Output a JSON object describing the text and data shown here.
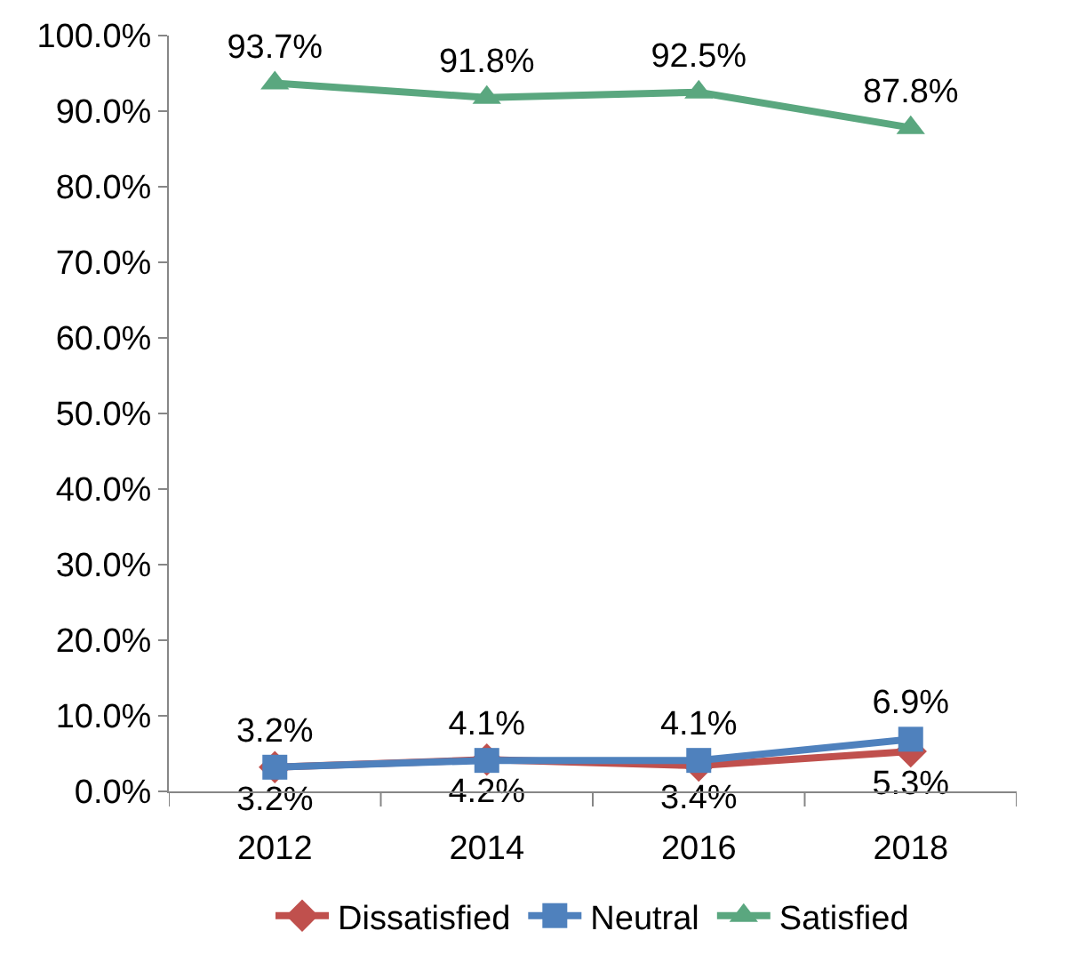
{
  "chart_data": {
    "type": "line",
    "categories": [
      "2012",
      "2014",
      "2016",
      "2018"
    ],
    "series": [
      {
        "name": "Dissatisfied",
        "color": "#c0504d",
        "marker": "diamond",
        "values": [
          3.2,
          4.2,
          3.4,
          5.3
        ],
        "value_labels": [
          "3.2%",
          "4.2%",
          "3.4%",
          "5.3%"
        ]
      },
      {
        "name": "Neutral",
        "color": "#4f81bd",
        "marker": "square",
        "values": [
          3.2,
          4.1,
          4.1,
          6.9
        ],
        "value_labels": [
          "3.2%",
          "4.1%",
          "4.1%",
          "6.9%"
        ]
      },
      {
        "name": "Satisfied",
        "color": "#5aa77f",
        "marker": "triangle",
        "values": [
          93.7,
          91.8,
          92.5,
          87.8
        ],
        "value_labels": [
          "93.7%",
          "91.8%",
          "92.5%",
          "87.8%"
        ]
      }
    ],
    "ylim": [
      0,
      100
    ],
    "yticks": [
      {
        "value": 0,
        "label": "0.0%"
      },
      {
        "value": 10,
        "label": "10.0%"
      },
      {
        "value": 20,
        "label": "20.0%"
      },
      {
        "value": 30,
        "label": "30.0%"
      },
      {
        "value": 40,
        "label": "40.0%"
      },
      {
        "value": 50,
        "label": "50.0%"
      },
      {
        "value": 60,
        "label": "60.0%"
      },
      {
        "value": 70,
        "label": "70.0%"
      },
      {
        "value": 80,
        "label": "80.0%"
      },
      {
        "value": 90,
        "label": "90.0%"
      },
      {
        "value": 100,
        "label": "100.0%"
      }
    ],
    "legend": "bottom",
    "line_style": "solid"
  }
}
